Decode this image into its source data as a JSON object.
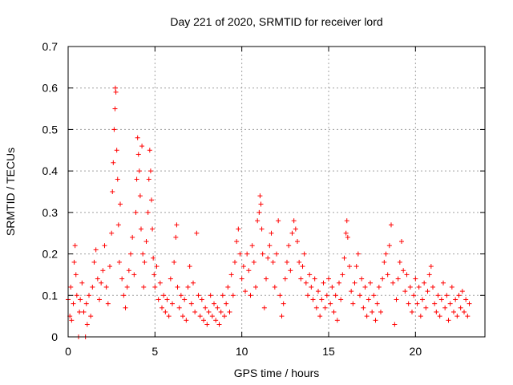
{
  "chart_data": {
    "type": "scatter",
    "title": "Day 221 of 2020, SRMTID for receiver lord",
    "xlabel": "GPS time / hours",
    "ylabel": "SRMTID / TECUs",
    "xlim": [
      0,
      24
    ],
    "ylim": [
      0,
      0.7
    ],
    "x_ticks": [
      0,
      5,
      10,
      15,
      20
    ],
    "x_tick_labels": [
      "0",
      "5",
      "10",
      "15",
      "20"
    ],
    "y_ticks": [
      0,
      0.1,
      0.2,
      0.3,
      0.4,
      0.5,
      0.6,
      0.7
    ],
    "y_tick_labels": [
      "0",
      "0.1",
      "0.2",
      "0.3",
      "0.4",
      "0.5",
      "0.6",
      "0.7"
    ],
    "grid": true,
    "marker": "+",
    "color": "#ff0000",
    "series": [
      {
        "name": "SRMTID",
        "points": [
          [
            0.0,
            0.09
          ],
          [
            0.1,
            0.05
          ],
          [
            0.15,
            0.12
          ],
          [
            0.2,
            0.04
          ],
          [
            0.3,
            0.08
          ],
          [
            0.35,
            0.18
          ],
          [
            0.4,
            0.22
          ],
          [
            0.45,
            0.15
          ],
          [
            0.5,
            0.1
          ],
          [
            0.6,
            0.0
          ],
          [
            0.65,
            0.06
          ],
          [
            0.7,
            0.09
          ],
          [
            0.8,
            0.13
          ],
          [
            0.9,
            0.06
          ],
          [
            1.0,
            0.0
          ],
          [
            1.05,
            0.08
          ],
          [
            1.1,
            0.03
          ],
          [
            1.2,
            0.1
          ],
          [
            1.3,
            0.05
          ],
          [
            1.4,
            0.12
          ],
          [
            1.5,
            0.18
          ],
          [
            1.6,
            0.21
          ],
          [
            1.7,
            0.14
          ],
          [
            1.8,
            0.09
          ],
          [
            1.9,
            0.13
          ],
          [
            2.0,
            0.16
          ],
          [
            2.1,
            0.22
          ],
          [
            2.2,
            0.12
          ],
          [
            2.3,
            0.08
          ],
          [
            2.4,
            0.17
          ],
          [
            2.5,
            0.25
          ],
          [
            2.55,
            0.35
          ],
          [
            2.6,
            0.42
          ],
          [
            2.65,
            0.5
          ],
          [
            2.7,
            0.55
          ],
          [
            2.72,
            0.6
          ],
          [
            2.75,
            0.59
          ],
          [
            2.8,
            0.45
          ],
          [
            2.85,
            0.38
          ],
          [
            2.9,
            0.27
          ],
          [
            2.95,
            0.18
          ],
          [
            3.0,
            0.32
          ],
          [
            3.1,
            0.14
          ],
          [
            3.2,
            0.1
          ],
          [
            3.3,
            0.07
          ],
          [
            3.4,
            0.12
          ],
          [
            3.5,
            0.16
          ],
          [
            3.6,
            0.2
          ],
          [
            3.7,
            0.24
          ],
          [
            3.8,
            0.15
          ],
          [
            3.9,
            0.3
          ],
          [
            3.95,
            0.38
          ],
          [
            4.0,
            0.48
          ],
          [
            4.05,
            0.44
          ],
          [
            4.1,
            0.4
          ],
          [
            4.15,
            0.34
          ],
          [
            4.2,
            0.26
          ],
          [
            4.25,
            0.46
          ],
          [
            4.3,
            0.2
          ],
          [
            4.35,
            0.12
          ],
          [
            4.4,
            0.18
          ],
          [
            4.5,
            0.23
          ],
          [
            4.6,
            0.3
          ],
          [
            4.65,
            0.38
          ],
          [
            4.7,
            0.45
          ],
          [
            4.75,
            0.4
          ],
          [
            4.8,
            0.33
          ],
          [
            4.85,
            0.26
          ],
          [
            4.9,
            0.19
          ],
          [
            4.95,
            0.15
          ],
          [
            5.0,
            0.12
          ],
          [
            5.1,
            0.17
          ],
          [
            5.2,
            0.09
          ],
          [
            5.3,
            0.13
          ],
          [
            5.4,
            0.07
          ],
          [
            5.5,
            0.1
          ],
          [
            5.6,
            0.06
          ],
          [
            5.7,
            0.09
          ],
          [
            5.8,
            0.05
          ],
          [
            5.9,
            0.14
          ],
          [
            6.0,
            0.08
          ],
          [
            6.1,
            0.18
          ],
          [
            6.2,
            0.24
          ],
          [
            6.25,
            0.27
          ],
          [
            6.3,
            0.12
          ],
          [
            6.4,
            0.07
          ],
          [
            6.5,
            0.1
          ],
          [
            6.6,
            0.05
          ],
          [
            6.7,
            0.09
          ],
          [
            6.8,
            0.04
          ],
          [
            6.9,
            0.12
          ],
          [
            7.0,
            0.17
          ],
          [
            7.1,
            0.08
          ],
          [
            7.2,
            0.13
          ],
          [
            7.3,
            0.06
          ],
          [
            7.4,
            0.25
          ],
          [
            7.5,
            0.1
          ],
          [
            7.6,
            0.05
          ],
          [
            7.7,
            0.09
          ],
          [
            7.8,
            0.04
          ],
          [
            7.9,
            0.07
          ],
          [
            8.0,
            0.03
          ],
          [
            8.1,
            0.06
          ],
          [
            8.2,
            0.1
          ],
          [
            8.3,
            0.05
          ],
          [
            8.4,
            0.08
          ],
          [
            8.5,
            0.04
          ],
          [
            8.6,
            0.07
          ],
          [
            8.7,
            0.03
          ],
          [
            8.8,
            0.06
          ],
          [
            8.9,
            0.1
          ],
          [
            9.0,
            0.05
          ],
          [
            9.1,
            0.08
          ],
          [
            9.2,
            0.12
          ],
          [
            9.3,
            0.06
          ],
          [
            9.4,
            0.15
          ],
          [
            9.5,
            0.1
          ],
          [
            9.6,
            0.18
          ],
          [
            9.7,
            0.23
          ],
          [
            9.8,
            0.26
          ],
          [
            9.9,
            0.2
          ],
          [
            10.0,
            0.14
          ],
          [
            10.1,
            0.17
          ],
          [
            10.2,
            0.11
          ],
          [
            10.3,
            0.2
          ],
          [
            10.4,
            0.16
          ],
          [
            10.5,
            0.1
          ],
          [
            10.6,
            0.22
          ],
          [
            10.7,
            0.18
          ],
          [
            10.8,
            0.12
          ],
          [
            10.9,
            0.28
          ],
          [
            11.0,
            0.3
          ],
          [
            11.05,
            0.34
          ],
          [
            11.1,
            0.32
          ],
          [
            11.15,
            0.26
          ],
          [
            11.2,
            0.2
          ],
          [
            11.3,
            0.07
          ],
          [
            11.4,
            0.14
          ],
          [
            11.5,
            0.19
          ],
          [
            11.6,
            0.22
          ],
          [
            11.7,
            0.25
          ],
          [
            11.8,
            0.18
          ],
          [
            11.9,
            0.12
          ],
          [
            12.0,
            0.2
          ],
          [
            12.1,
            0.28
          ],
          [
            12.2,
            0.1
          ],
          [
            12.3,
            0.05
          ],
          [
            12.4,
            0.08
          ],
          [
            12.5,
            0.14
          ],
          [
            12.6,
            0.18
          ],
          [
            12.7,
            0.22
          ],
          [
            12.8,
            0.16
          ],
          [
            12.9,
            0.25
          ],
          [
            13.0,
            0.28
          ],
          [
            13.1,
            0.26
          ],
          [
            13.2,
            0.23
          ],
          [
            13.3,
            0.18
          ],
          [
            13.4,
            0.14
          ],
          [
            13.5,
            0.17
          ],
          [
            13.6,
            0.2
          ],
          [
            13.7,
            0.13
          ],
          [
            13.8,
            0.1
          ],
          [
            13.9,
            0.15
          ],
          [
            14.0,
            0.12
          ],
          [
            14.1,
            0.09
          ],
          [
            14.2,
            0.14
          ],
          [
            14.3,
            0.07
          ],
          [
            14.4,
            0.11
          ],
          [
            14.5,
            0.05
          ],
          [
            14.6,
            0.09
          ],
          [
            14.7,
            0.13
          ],
          [
            14.8,
            0.07
          ],
          [
            14.9,
            0.1
          ],
          [
            15.0,
            0.14
          ],
          [
            15.1,
            0.08
          ],
          [
            15.2,
            0.12
          ],
          [
            15.3,
            0.06
          ],
          [
            15.4,
            0.1
          ],
          [
            15.5,
            0.04
          ],
          [
            15.6,
            0.13
          ],
          [
            15.7,
            0.09
          ],
          [
            15.8,
            0.15
          ],
          [
            15.9,
            0.19
          ],
          [
            16.0,
            0.25
          ],
          [
            16.05,
            0.28
          ],
          [
            16.1,
            0.24
          ],
          [
            16.2,
            0.17
          ],
          [
            16.3,
            0.11
          ],
          [
            16.4,
            0.08
          ],
          [
            16.5,
            0.13
          ],
          [
            16.6,
            0.17
          ],
          [
            16.7,
            0.2
          ],
          [
            16.8,
            0.1
          ],
          [
            16.9,
            0.14
          ],
          [
            17.0,
            0.07
          ],
          [
            17.1,
            0.12
          ],
          [
            17.2,
            0.05
          ],
          [
            17.3,
            0.09
          ],
          [
            17.4,
            0.13
          ],
          [
            17.5,
            0.06
          ],
          [
            17.6,
            0.1
          ],
          [
            17.7,
            0.04
          ],
          [
            17.8,
            0.08
          ],
          [
            17.9,
            0.12
          ],
          [
            18.0,
            0.06
          ],
          [
            18.1,
            0.14
          ],
          [
            18.2,
            0.18
          ],
          [
            18.3,
            0.2
          ],
          [
            18.4,
            0.15
          ],
          [
            18.5,
            0.22
          ],
          [
            18.6,
            0.27
          ],
          [
            18.7,
            0.13
          ],
          [
            18.8,
            0.03
          ],
          [
            18.9,
            0.09
          ],
          [
            19.0,
            0.14
          ],
          [
            19.1,
            0.18
          ],
          [
            19.2,
            0.23
          ],
          [
            19.3,
            0.16
          ],
          [
            19.4,
            0.11
          ],
          [
            19.5,
            0.15
          ],
          [
            19.6,
            0.08
          ],
          [
            19.7,
            0.12
          ],
          [
            19.8,
            0.06
          ],
          [
            19.9,
            0.1
          ],
          [
            20.0,
            0.14
          ],
          [
            20.1,
            0.08
          ],
          [
            20.2,
            0.12
          ],
          [
            20.3,
            0.05
          ],
          [
            20.4,
            0.09
          ],
          [
            20.5,
            0.13
          ],
          [
            20.6,
            0.07
          ],
          [
            20.7,
            0.11
          ],
          [
            20.8,
            0.15
          ],
          [
            20.9,
            0.17
          ],
          [
            21.0,
            0.12
          ],
          [
            21.1,
            0.08
          ],
          [
            21.2,
            0.06
          ],
          [
            21.3,
            0.1
          ],
          [
            21.4,
            0.05
          ],
          [
            21.5,
            0.09
          ],
          [
            21.6,
            0.13
          ],
          [
            21.7,
            0.07
          ],
          [
            21.8,
            0.1
          ],
          [
            21.9,
            0.04
          ],
          [
            22.0,
            0.08
          ],
          [
            22.1,
            0.12
          ],
          [
            22.2,
            0.06
          ],
          [
            22.3,
            0.09
          ],
          [
            22.4,
            0.05
          ],
          [
            22.5,
            0.1
          ],
          [
            22.6,
            0.07
          ],
          [
            22.7,
            0.11
          ],
          [
            22.8,
            0.06
          ],
          [
            22.9,
            0.09
          ],
          [
            23.0,
            0.05
          ],
          [
            23.1,
            0.08
          ]
        ]
      }
    ]
  }
}
